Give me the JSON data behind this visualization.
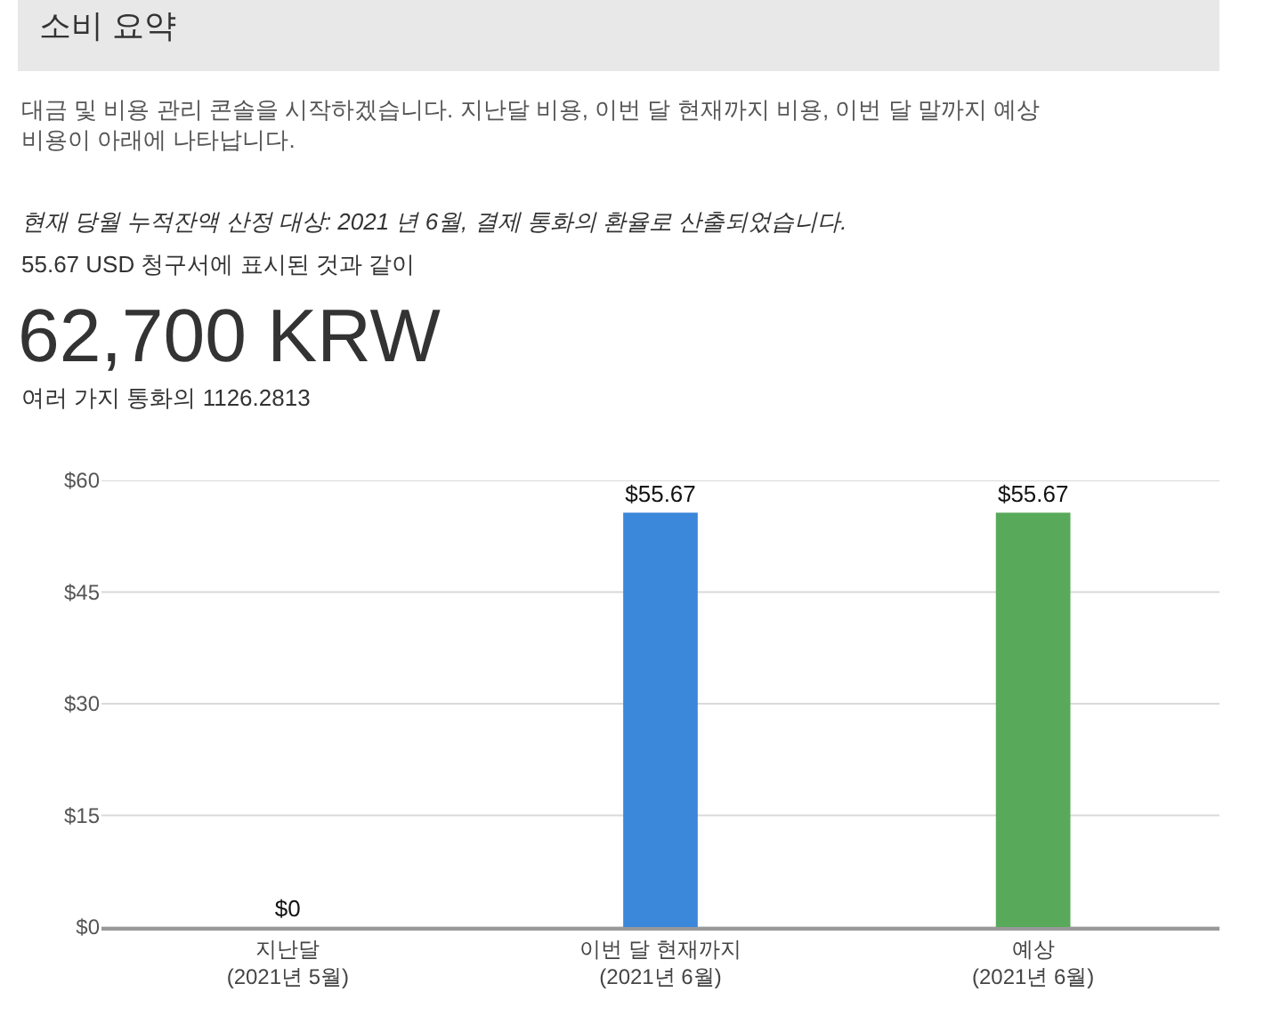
{
  "chart_data": {
    "type": "bar",
    "title": "소비 요약",
    "annotations": [
      "대금 및 비용 관리 콘솔을 시작하겠습니다. 지난달 비용, 이번 달 현재까지 비용, 이번 달 말까지 예상\n비용이 아래에 나타납니다.",
      "현재 당월 누적잔액 산정 대상: 2021 년 6월, 결제 통화의 환율로 산출되었습니다.",
      "55.67 USD 청구서에 표시된 것과 같이",
      "62,700 KRW",
      "여러 가지 통화의 1126.2813"
    ],
    "categories": [
      "지난달\n(2021년 5월)",
      "이번 달 현재까지\n(2021년 6월)",
      "예상\n(2021년 6월)"
    ],
    "values": [
      0,
      55.67,
      55.67
    ],
    "colors": [
      "#3b87da",
      "#3b87da",
      "#58aa5a"
    ],
    "value_labels": [
      "$0",
      "$55.67",
      "$55.67"
    ],
    "ylim": [
      0,
      60
    ],
    "yticks": [
      {
        "value": 0,
        "label": "$0"
      },
      {
        "value": 15,
        "label": "$15"
      },
      {
        "value": 30,
        "label": "$30"
      },
      {
        "value": 45,
        "label": "$45"
      },
      {
        "value": 60,
        "label": "$60"
      }
    ],
    "grid": "y"
  }
}
